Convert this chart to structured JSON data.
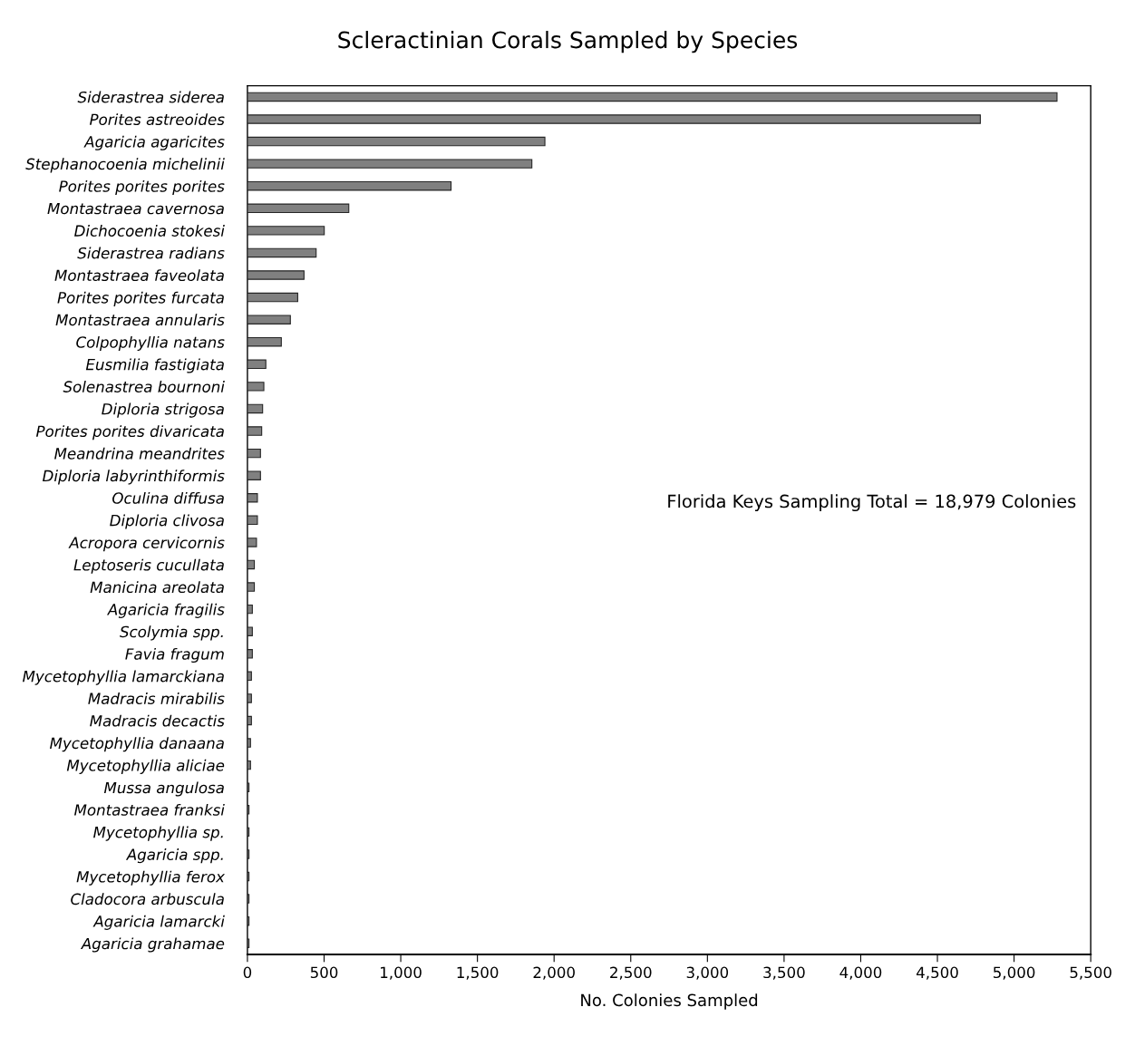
{
  "chart_data": {
    "type": "bar",
    "orientation": "horizontal",
    "title": "Scleractinian Corals Sampled by Species",
    "xlabel": "No. Colonies Sampled",
    "categories": [
      "Siderastrea siderea",
      "Porites astreoides",
      "Agaricia agaricites",
      "Stephanocoenia michelinii",
      "Porites porites porites",
      "Montastraea cavernosa",
      "Dichocoenia stokesi",
      "Siderastrea radians",
      "Montastraea faveolata",
      "Porites porites furcata",
      "Montastraea annularis",
      "Colpophyllia natans",
      "Eusmilia fastigiata",
      "Solenastrea bournoni",
      "Diploria strigosa",
      "Porites porites divaricata",
      "Meandrina meandrites",
      "Diploria labyrinthiformis",
      "Oculina diffusa",
      "Diploria clivosa",
      "Acropora cervicornis",
      "Leptoseris cucullata",
      "Manicina areolata",
      "Agaricia fragilis",
      "Scolymia spp.",
      "Favia fragum",
      "Mycetophyllia lamarckiana",
      "Madracis mirabilis",
      "Madracis decactis",
      "Mycetophyllia danaana",
      "Mycetophyllia aliciae",
      "Mussa angulosa",
      "Montastraea franksi",
      "Mycetophyllia sp.",
      "Agaricia spp.",
      "Mycetophyllia ferox",
      "Cladocora arbuscula",
      "Agaricia lamarcki",
      "Agaricia grahamae"
    ],
    "values": [
      5280,
      4780,
      1940,
      1855,
      1328,
      661,
      501,
      448,
      369,
      328,
      280,
      221,
      120,
      107,
      99,
      93,
      85,
      85,
      65,
      65,
      59,
      45,
      45,
      32,
      32,
      32,
      26,
      26,
      26,
      20,
      20,
      10,
      10,
      10,
      10,
      10,
      10,
      10,
      10
    ],
    "color": "#808080",
    "xlim": [
      0,
      5500
    ],
    "xticks": [
      0,
      {
        "value": 500,
        "label": "500"
      },
      {
        "value": 1000,
        "label": "1,000"
      },
      {
        "value": 1500,
        "label": "1,500"
      },
      {
        "value": 2000,
        "label": "2,000"
      },
      {
        "value": 2500,
        "label": "2,500"
      },
      {
        "value": 3000,
        "label": "3,000"
      },
      {
        "value": 3500,
        "label": "3,500"
      },
      {
        "value": 4000,
        "label": "4,000"
      },
      {
        "value": 4500,
        "label": "4,500"
      },
      {
        "value": 5000,
        "label": "5,000"
      },
      {
        "value": 5500,
        "label": "5,500"
      }
    ],
    "annotations": [
      "Florida Keys Sampling Total = 18,979 Colonies"
    ],
    "grid": false,
    "legend": false
  }
}
